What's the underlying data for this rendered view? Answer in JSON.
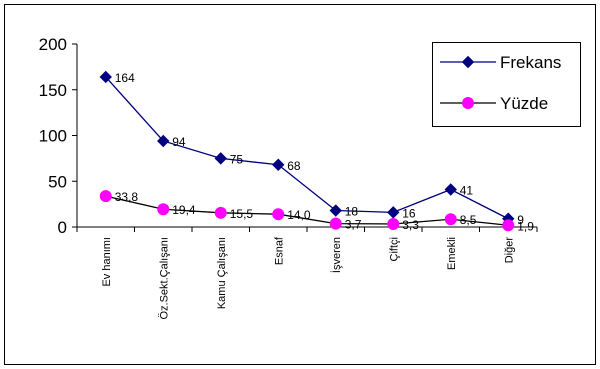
{
  "chart_data": {
    "type": "line",
    "categories": [
      "Ev hanımı",
      "Öz.Sekt.Çalışanı",
      "Kamu Çalışanı",
      "Esnaf",
      "İşveren",
      "Çiftçi",
      "Emekli",
      "Diğer"
    ],
    "series": [
      {
        "name": "Frekans",
        "values": [
          164,
          94,
          75,
          68,
          18,
          16,
          41,
          9
        ],
        "labels": [
          "164",
          "94",
          "75",
          "68",
          "18",
          "16",
          "41",
          "9"
        ],
        "color": "#000080",
        "marker": "diamond"
      },
      {
        "name": "Yüzde",
        "values": [
          33.8,
          19.4,
          15.5,
          14.0,
          3.7,
          3.3,
          8.5,
          1.9
        ],
        "labels": [
          "33,8",
          "19,4",
          "15,5",
          "14,0",
          "3,7",
          "3,3",
          "8,5",
          "1,9"
        ],
        "color": "#FF00FF",
        "line_color": "#000000",
        "marker": "circle"
      }
    ],
    "ylim": [
      0,
      200
    ],
    "yticks": [
      "0",
      "50",
      "100",
      "150",
      "200"
    ],
    "title": "",
    "xlabel": "",
    "ylabel": "",
    "grid": false,
    "legend_position": "top-right"
  }
}
